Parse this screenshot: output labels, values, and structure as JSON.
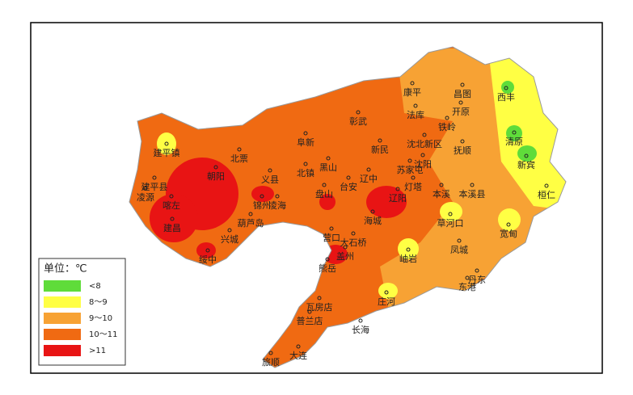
{
  "legend": {
    "title": "单位：℃",
    "items": [
      {
        "label": "<8",
        "color": "#5fdc3a"
      },
      {
        "label": "8～9",
        "color": "#ffff44"
      },
      {
        "label": "9～10",
        "color": "#f7a234"
      },
      {
        "label": "10～11",
        "color": "#f06a12"
      },
      {
        "label": ">11",
        "color": "#e81414"
      }
    ]
  },
  "cities": [
    "康平",
    "昌图",
    "西丰",
    "法库",
    "开原",
    "彰武",
    "铁岭",
    "清原",
    "阜新",
    "新民",
    "沈北新区",
    "抚顺",
    "建平镇",
    "北票",
    "新宾",
    "朝阳",
    "义县",
    "黑山",
    "北镇",
    "苏家屯",
    "沈阳",
    "辽中",
    "灯塔",
    "本溪",
    "本溪县",
    "桓仁",
    "建平县",
    "凌源",
    "喀左",
    "锦州",
    "凌海",
    "盘山",
    "台安",
    "辽阳",
    "海城",
    "葫芦岛",
    "兴城",
    "建昌",
    "营口",
    "大石桥",
    "盖州",
    "草河口",
    "宽甸",
    "岫岩",
    "凤城",
    "绥中",
    "熊岳",
    "丹东",
    "东港",
    "庄河",
    "瓦房店",
    "普兰店",
    "长海",
    "大连",
    "旅顺"
  ]
}
